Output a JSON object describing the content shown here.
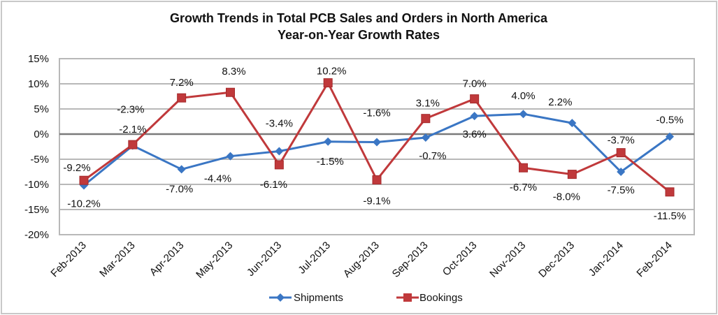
{
  "chart_data": {
    "type": "line",
    "title": "Growth Trends in Total PCB Sales and Orders in North America",
    "subtitle": "Year-on-Year Growth Rates",
    "xlabel": "",
    "ylabel": "",
    "ylim": [
      -20,
      15
    ],
    "yticks": [
      "15%",
      "10%",
      "5%",
      "0%",
      "-5%",
      "-10%",
      "-15%",
      "-20%"
    ],
    "ytick_values": [
      15,
      10,
      5,
      0,
      -5,
      -10,
      -15,
      -20
    ],
    "grid": true,
    "legend_position": "bottom",
    "categories": [
      "Feb-2013",
      "Mar-2013",
      "Apr-2013",
      "May-2013",
      "Jun-2013",
      "Jul-2013",
      "Aug-2013",
      "Sep-2013",
      "Oct-2013",
      "Nov-2013",
      "Dec-2013",
      "Jan-2014",
      "Feb-2014"
    ],
    "series": [
      {
        "name": "Shipments",
        "color": "#3a76c4",
        "marker": "diamond",
        "values": [
          -10.2,
          -2.3,
          -7.0,
          -4.4,
          -3.4,
          -1.5,
          -1.6,
          -0.7,
          3.6,
          4.0,
          2.2,
          -7.5,
          -0.5
        ],
        "labels": [
          "-10.2%",
          "-2.3%",
          "-7.0%",
          "-4.4%",
          "-3.4%",
          "-1.5%",
          "-1.6%",
          "-0.7%",
          "3.6%",
          "4.0%",
          "2.2%",
          "-7.5%",
          "-0.5%"
        ]
      },
      {
        "name": "Bookings",
        "color": "#c0393b",
        "marker": "square",
        "values": [
          -9.2,
          -2.1,
          7.2,
          8.3,
          -6.1,
          10.2,
          -9.1,
          3.1,
          7.0,
          -6.7,
          -8.0,
          -3.7,
          -11.5
        ],
        "labels": [
          "-9.2%",
          "-2.1%",
          "7.2%",
          "8.3%",
          "-6.1%",
          "10.2%",
          "-9.1%",
          "3.1%",
          "7.0%",
          "-6.7%",
          "-8.0%",
          "-3.7%",
          "-11.5%"
        ]
      }
    ]
  }
}
